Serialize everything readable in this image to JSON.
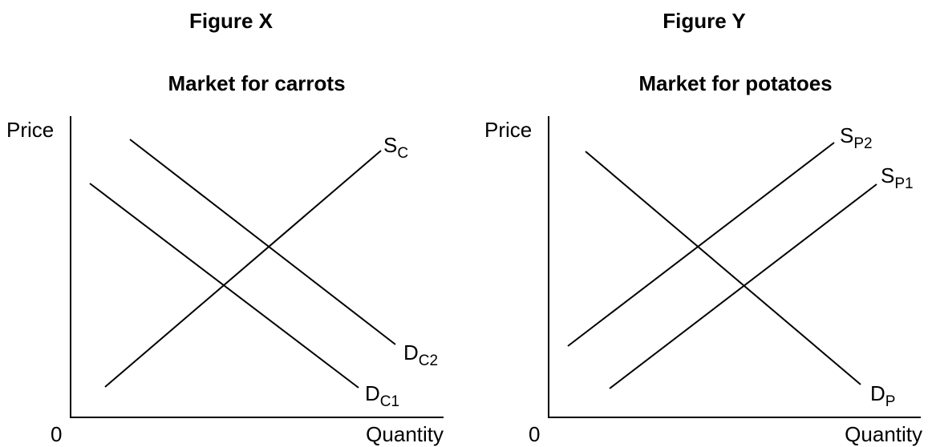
{
  "figures": [
    {
      "title": "Figure X",
      "subtitle": "Market for carrots",
      "y_label": "Price",
      "x_label": "Quantity",
      "origin": "0",
      "curves": [
        {
          "main": "S",
          "sub": "C"
        },
        {
          "main": "D",
          "sub": "C2"
        },
        {
          "main": "D",
          "sub": "C1"
        }
      ]
    },
    {
      "title": "Figure Y",
      "subtitle": "Market for potatoes",
      "y_label": "Price",
      "x_label": "Quantity",
      "origin": "0",
      "curves": [
        {
          "main": "S",
          "sub": "P2"
        },
        {
          "main": "S",
          "sub": "P1"
        },
        {
          "main": "D",
          "sub": "P"
        }
      ]
    }
  ]
}
